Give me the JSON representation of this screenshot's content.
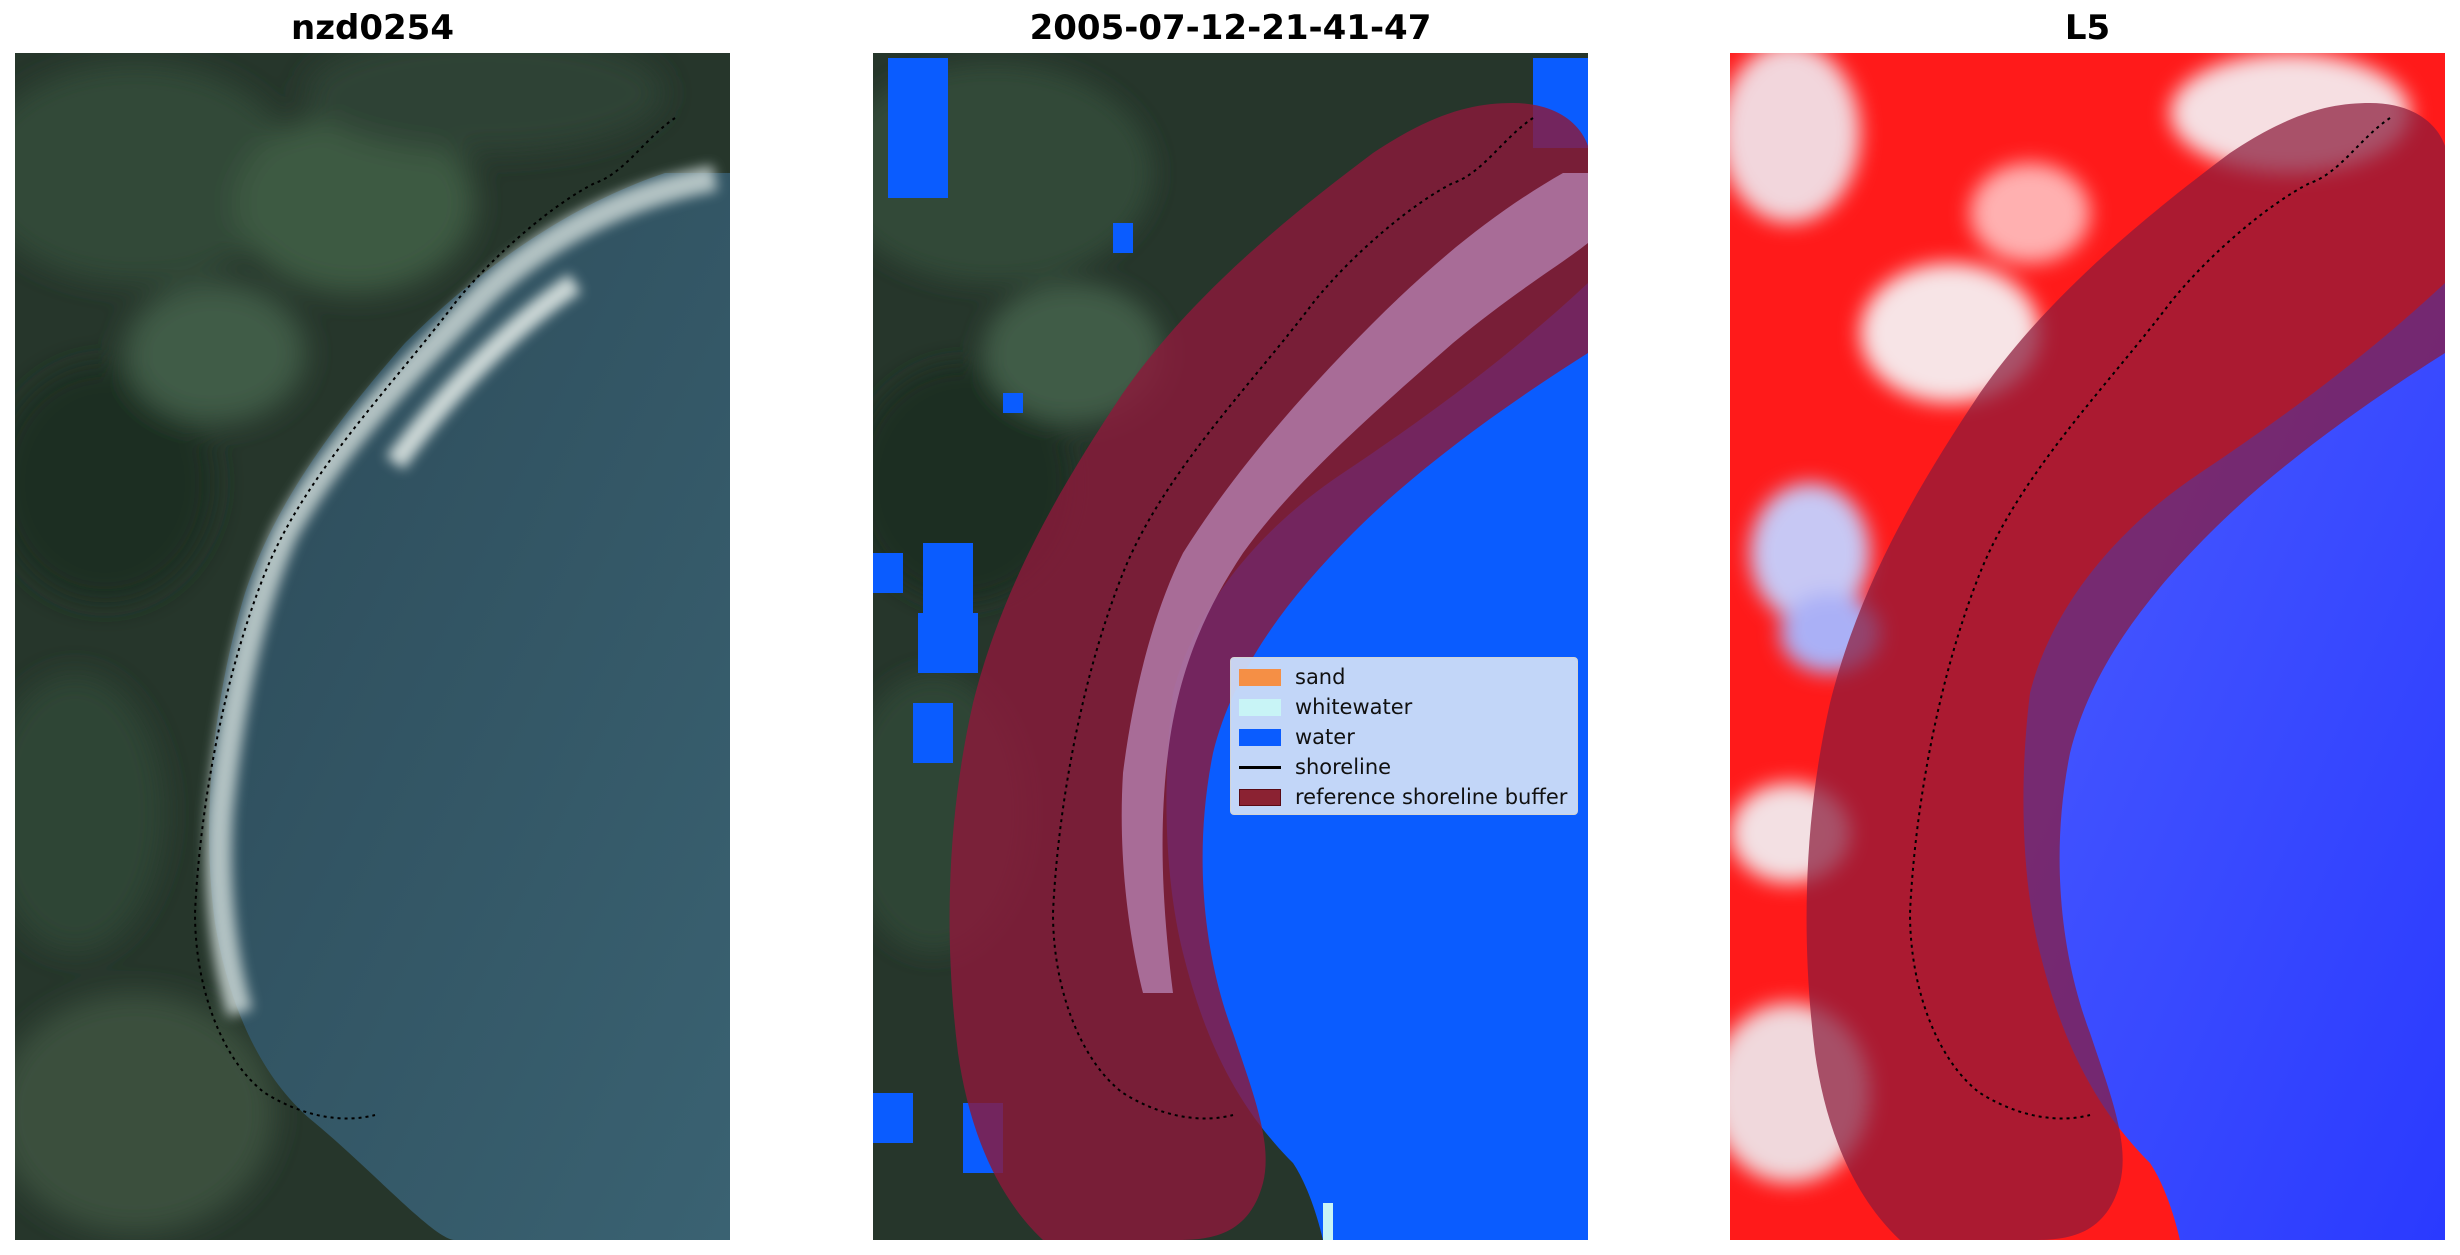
{
  "panels": [
    {
      "title": "nzd0254"
    },
    {
      "title": "2005-07-12-21-41-47"
    },
    {
      "title": "L5"
    }
  ],
  "legend": {
    "items": [
      {
        "label": "sand",
        "color": "#f58f45"
      },
      {
        "label": "whitewater",
        "color": "#c8f4f6"
      },
      {
        "label": "water",
        "color": "#0a5cff"
      },
      {
        "label": "shoreline",
        "color": "#000000"
      },
      {
        "label": "reference shoreline buffer",
        "color": "#8b2232"
      }
    ]
  },
  "colors": {
    "buffer": "#8b1a3a",
    "water": "#0a5cff",
    "land_dark": "#2a3a2e",
    "sea": "#2f5464",
    "index_red": "#ff1a1a",
    "index_blue": "#2a3aff"
  }
}
